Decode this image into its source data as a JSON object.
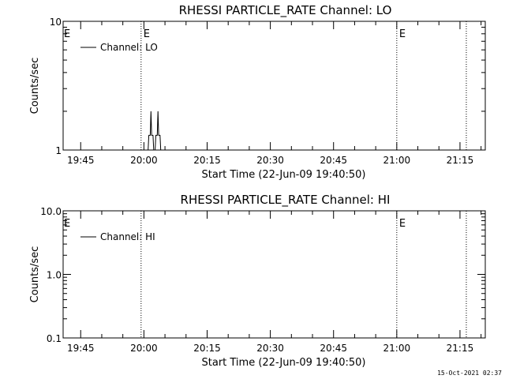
{
  "footer_timestamp": "15-Oct-2021 02:37",
  "colors": {
    "foreground": "#000000",
    "background": "#ffffff"
  },
  "chart_data": [
    {
      "type": "line",
      "title": "RHESSI PARTICLE_RATE Channel: LO",
      "xlabel": "Start Time (22-Jun-09 19:40:50)",
      "ylabel": "Counts/sec",
      "y_scale": "log",
      "ylim": [
        1,
        10
      ],
      "y_ticks": [
        {
          "value": 1,
          "label": "1"
        },
        {
          "value": 10,
          "label": "10"
        }
      ],
      "x_ticks": [
        "19:45",
        "20:00",
        "20:15",
        "20:30",
        "20:45",
        "21:00",
        "21:15"
      ],
      "xlim": [
        "19:40:50",
        "21:21:00"
      ],
      "legend": {
        "position": "top-left",
        "entries": [
          "Channel: LO"
        ]
      },
      "markers": [
        {
          "time": "19:59:20",
          "label": "E"
        },
        {
          "time": "21:00:00",
          "label": "E"
        },
        {
          "time": "21:16:30",
          "label": ""
        }
      ],
      "left_marker_label": "E",
      "series": [
        {
          "name": "Channel: LO",
          "points": [
            [
              "20:01:00",
              1
            ],
            [
              "20:01:10",
              1.3
            ],
            [
              "20:01:30",
              1.3
            ],
            [
              "20:01:40",
              2
            ],
            [
              "20:01:50",
              1.3
            ],
            [
              "20:02:10",
              1.3
            ],
            [
              "20:02:20",
              1
            ],
            [
              "20:02:40",
              1
            ],
            [
              "20:02:50",
              1.3
            ],
            [
              "20:03:10",
              1.3
            ],
            [
              "20:03:20",
              2
            ],
            [
              "20:03:30",
              1.3
            ],
            [
              "20:03:50",
              1.3
            ],
            [
              "20:04:00",
              1
            ]
          ]
        }
      ]
    },
    {
      "type": "line",
      "title": "RHESSI PARTICLE_RATE Channel: HI",
      "xlabel": "Start Time (22-Jun-09 19:40:50)",
      "ylabel": "Counts/sec",
      "y_scale": "log",
      "ylim": [
        0.1,
        10
      ],
      "y_ticks": [
        {
          "value": 0.1,
          "label": "0.1"
        },
        {
          "value": 1,
          "label": "1.0"
        },
        {
          "value": 10,
          "label": "10.0"
        }
      ],
      "x_ticks": [
        "19:45",
        "20:00",
        "20:15",
        "20:30",
        "20:45",
        "21:00",
        "21:15"
      ],
      "xlim": [
        "19:40:50",
        "21:21:00"
      ],
      "legend": {
        "position": "top-left",
        "entries": [
          "Channel: HI"
        ]
      },
      "markers": [
        {
          "time": "19:59:20",
          "label": ""
        },
        {
          "time": "21:00:00",
          "label": "E"
        },
        {
          "time": "21:16:30",
          "label": ""
        }
      ],
      "left_marker_label": "E",
      "series": [
        {
          "name": "Channel: HI",
          "points": []
        }
      ]
    }
  ]
}
